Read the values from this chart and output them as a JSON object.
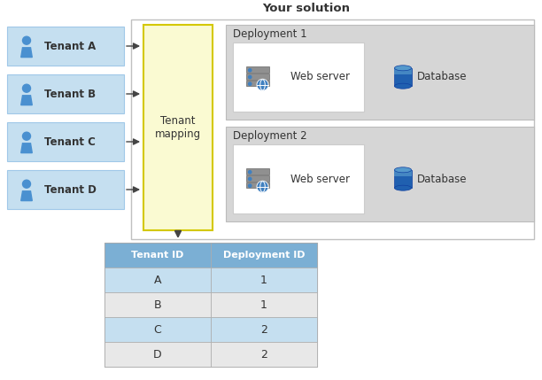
{
  "title": "Your solution",
  "tenants": [
    "Tenant A",
    "Tenant B",
    "Tenant C",
    "Tenant D"
  ],
  "tenant_box_color": "#C5DFF0",
  "tenant_box_edge": "#A0C8E8",
  "mapping_box_color": "#FAFAD2",
  "mapping_box_edge": "#D4C800",
  "mapping_label": "Tenant\nmapping",
  "solution_box_color": "#FFFFFF",
  "solution_box_edge": "#C0C0C0",
  "deployment_box_color": "#D6D6D6",
  "deployment_box_edge": "#BBBBBB",
  "webserver_box_color": "#FFFFFF",
  "webserver_box_edge": "#CCCCCC",
  "deployments": [
    "Deployment 1",
    "Deployment 2"
  ],
  "table_header_color": "#7BAFD4",
  "table_header_text_color": "#FFFFFF",
  "table_row_colors": [
    "#C5DFF0",
    "#E8E8E8",
    "#C5DFF0",
    "#E8E8E8"
  ],
  "table_deploy_row_colors": [
    "#C5DFF0",
    "#E8E8E8",
    "#C5DFF0",
    "#E8E8E8"
  ],
  "table_tenant_ids": [
    "A",
    "B",
    "C",
    "D"
  ],
  "table_deployment_ids": [
    "1",
    "1",
    "2",
    "2"
  ],
  "table_header_text": [
    "Tenant ID",
    "Deployment ID"
  ],
  "bg_color": "#FFFFFF",
  "arrow_color": "#444444",
  "text_color": "#333333",
  "icon_blue": "#4A90D0",
  "icon_blue_dark": "#2255AA",
  "db_blue": "#2060B0",
  "db_top": "#5599CC"
}
